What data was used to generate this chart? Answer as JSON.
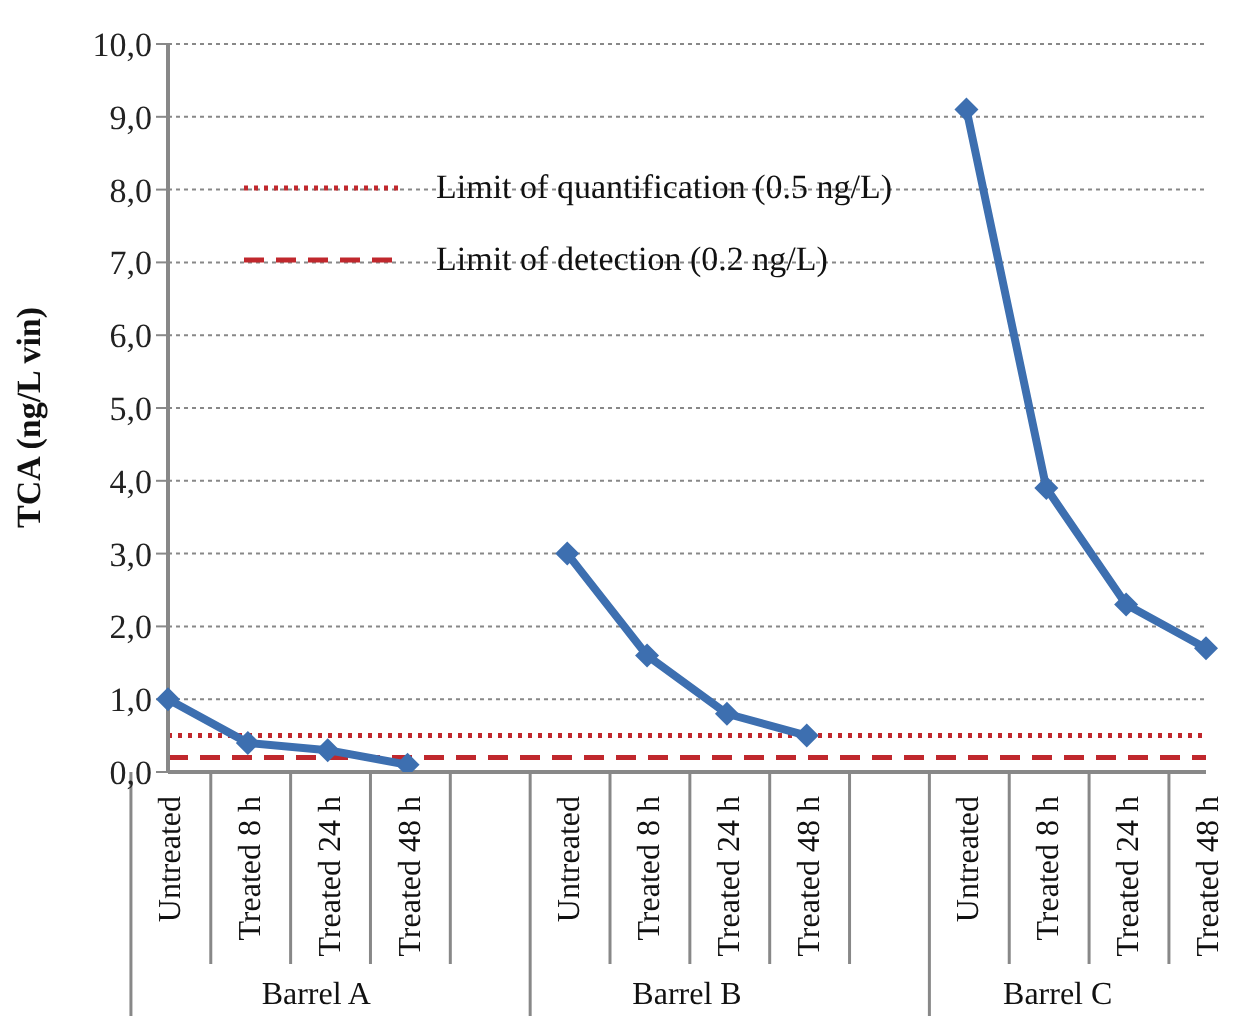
{
  "chart_data": {
    "type": "line",
    "ylabel": "TCA (ng/L vin)",
    "categories": [
      "Untreated",
      "Treated 8 h",
      "Treated 24 h",
      "Treated 48 h",
      null,
      "Untreated",
      "Treated 8 h",
      "Treated 24 h",
      "Treated 48 h",
      null,
      "Untreated",
      "Treated 8 h",
      "Treated 24 h",
      "Treated 48 h"
    ],
    "series": [
      {
        "color": "#3d6fb0",
        "values": [
          1.0,
          0.4,
          0.3,
          0.1,
          null,
          3.0,
          1.6,
          0.8,
          0.5,
          null,
          9.1,
          3.9,
          2.3,
          1.7
        ]
      }
    ],
    "ylim": [
      0,
      10
    ],
    "yticks": [
      {
        "value": 0,
        "label": "0,0"
      },
      {
        "value": 1,
        "label": "1,0"
      },
      {
        "value": 2,
        "label": "2,0"
      },
      {
        "value": 3,
        "label": "3,0"
      },
      {
        "value": 4,
        "label": "4,0"
      },
      {
        "value": 5,
        "label": "5,0"
      },
      {
        "value": 6,
        "label": "6,0"
      },
      {
        "value": 7,
        "label": "7,0"
      },
      {
        "value": 8,
        "label": "8,0"
      },
      {
        "value": 9,
        "label": "9,0"
      },
      {
        "value": 10,
        "label": "10,0"
      }
    ],
    "ref_lines": [
      {
        "axis": "y",
        "value": 0.5,
        "label": "Limit of quantification (0.5 ng/L)",
        "color": "#c0282d",
        "line_style": "dotted"
      },
      {
        "axis": "y",
        "value": 0.2,
        "label": "Limit of detection (0.2 ng/L)",
        "color": "#c0282d",
        "line_style": "dashed"
      }
    ],
    "annotations": [
      "Barrel A",
      "Barrel B",
      "Barrel C"
    ],
    "grid": "y",
    "legend": "top left",
    "marker": "diamond",
    "line_style": "solid"
  }
}
